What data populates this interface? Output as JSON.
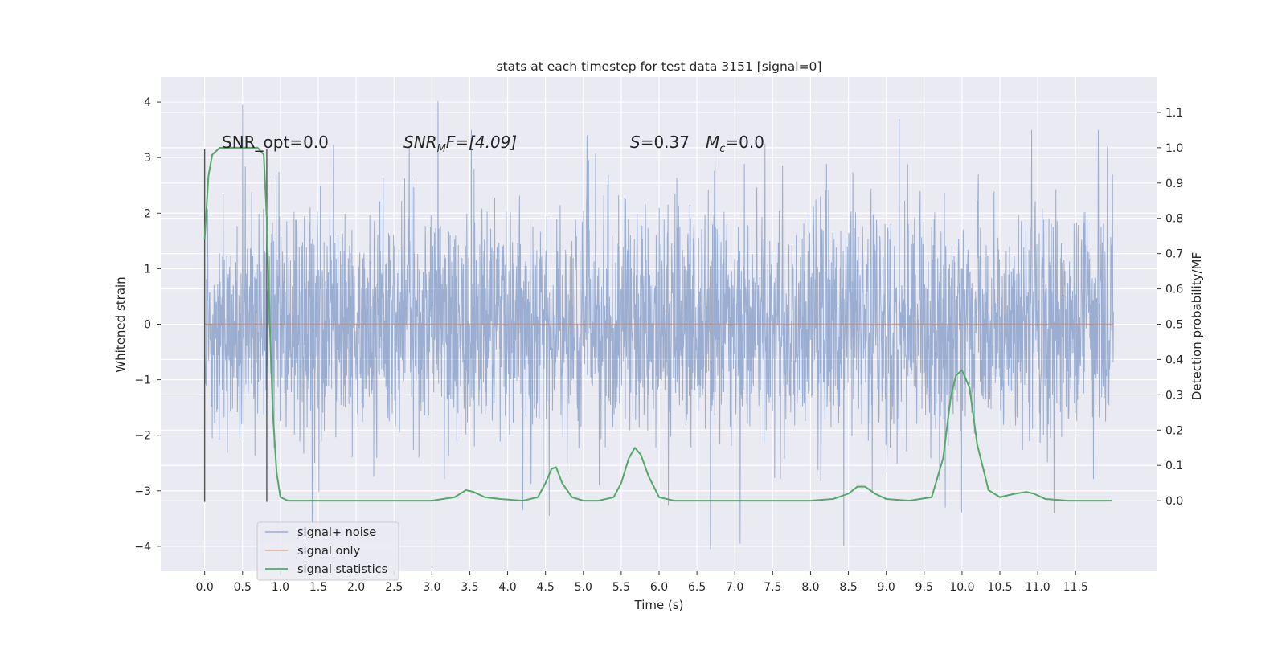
{
  "chart_data": {
    "type": "line",
    "title": "stats at each timestep for test data 3151 [signal=0]",
    "xlabel": "Time (s)",
    "ylabel_left": "Whitened strain",
    "ylabel_right": "Detection probability/MF",
    "xlim": [
      -0.58,
      12.58
    ],
    "ylim_left": [
      -4.45,
      4.45
    ],
    "ylim_right": [
      -0.2,
      1.2
    ],
    "x_ticks": [
      0.0,
      0.5,
      1.0,
      1.5,
      2.0,
      2.5,
      3.0,
      3.5,
      4.0,
      4.5,
      5.0,
      5.5,
      6.0,
      6.5,
      7.0,
      7.5,
      8.0,
      8.5,
      9.0,
      9.5,
      10.0,
      10.5,
      11.0,
      11.5
    ],
    "x_tick_labels": [
      "0.0",
      "0.5",
      "1.0",
      "1.5",
      "2.0",
      "2.5",
      "3.0",
      "3.5",
      "4.0",
      "4.5",
      "5.0",
      "5.5",
      "6.0",
      "6.5",
      "7.0",
      "7.5",
      "8.0",
      "8.5",
      "9.0",
      "9.5",
      "10.0",
      "10.5",
      "11.0",
      "11.5"
    ],
    "y_left_ticks": [
      -4,
      -3,
      -2,
      -1,
      0,
      1,
      2,
      3,
      4
    ],
    "y_left_tick_labels": [
      "−4",
      "−3",
      "−2",
      "−1",
      "0",
      "1",
      "2",
      "3",
      "4"
    ],
    "y_right_ticks": [
      0.0,
      0.1,
      0.2,
      0.3,
      0.4,
      0.5,
      0.6,
      0.7,
      0.8,
      0.9,
      1.0,
      1.1
    ],
    "y_right_tick_labels": [
      "0.0",
      "0.1",
      "0.2",
      "0.3",
      "0.4",
      "0.5",
      "0.6",
      "0.7",
      "0.8",
      "0.9",
      "1.0",
      "1.1"
    ],
    "grid": true,
    "legend_position": "lower-left",
    "annotations": {
      "snr_opt": "SNR_opt=0.0",
      "snr_mf_base": "SNR",
      "snr_mf_sub": "M",
      "snr_mf_rest": "F=[4.09]",
      "s_label": "S",
      "s_value": "=0.37",
      "mc_label": "M",
      "mc_sub": "c",
      "mc_value": "=0.0"
    },
    "series": [
      {
        "name": "signal+ noise",
        "axis": "left",
        "color": "#4c72b0",
        "kind": "noise",
        "x_range": [
          0.0,
          12.0
        ],
        "approx_envelope": [
          -3.4,
          3.5
        ],
        "peaks": [
          {
            "x": 0.5,
            "y": 3.95
          },
          {
            "x": 3.08,
            "y": 4.02
          },
          {
            "x": 2.7,
            "y": 3.2
          },
          {
            "x": 5.05,
            "y": 3.4
          },
          {
            "x": 9.17,
            "y": 3.7
          },
          {
            "x": 10.92,
            "y": 3.5
          },
          {
            "x": 11.92,
            "y": 3.2
          },
          {
            "x": 1.42,
            "y": -3.6
          },
          {
            "x": 6.68,
            "y": -4.05
          },
          {
            "x": 7.07,
            "y": -3.95
          },
          {
            "x": 8.44,
            "y": -4.0
          },
          {
            "x": 9.78,
            "y": -3.3
          },
          {
            "x": 4.55,
            "y": -3.45
          },
          {
            "x": 4.2,
            "y": -3.35
          }
        ]
      },
      {
        "name": "signal only",
        "axis": "left",
        "color": "#dd8452",
        "x": [
          0.0,
          12.0
        ],
        "y": [
          0.0,
          0.0
        ]
      },
      {
        "name": "signal statistics",
        "axis": "right",
        "color": "#55a868",
        "x": [
          0.0,
          0.05,
          0.1,
          0.15,
          0.2,
          0.3,
          0.4,
          0.5,
          0.6,
          0.7,
          0.78,
          0.82,
          0.86,
          0.9,
          0.95,
          1.0,
          1.1,
          1.5,
          2.0,
          2.5,
          3.0,
          3.3,
          3.45,
          3.55,
          3.7,
          3.9,
          4.2,
          4.4,
          4.5,
          4.58,
          4.64,
          4.72,
          4.85,
          5.0,
          5.2,
          5.4,
          5.5,
          5.6,
          5.68,
          5.76,
          5.86,
          6.0,
          6.2,
          6.5,
          7.0,
          7.5,
          8.0,
          8.3,
          8.5,
          8.62,
          8.72,
          8.85,
          9.0,
          9.3,
          9.6,
          9.75,
          9.85,
          9.92,
          10.0,
          10.1,
          10.2,
          10.35,
          10.5,
          10.7,
          10.85,
          10.95,
          11.1,
          11.4,
          11.8,
          11.98
        ],
        "y": [
          0.74,
          0.92,
          0.98,
          0.99,
          1.0,
          1.0,
          1.0,
          1.0,
          1.0,
          1.0,
          0.98,
          0.8,
          0.5,
          0.25,
          0.08,
          0.01,
          0.0,
          0.0,
          0.0,
          0.0,
          0.0,
          0.01,
          0.03,
          0.025,
          0.01,
          0.005,
          0.0,
          0.01,
          0.05,
          0.09,
          0.095,
          0.05,
          0.01,
          0.0,
          0.0,
          0.01,
          0.05,
          0.12,
          0.15,
          0.13,
          0.07,
          0.01,
          0.0,
          0.0,
          0.0,
          0.0,
          0.0,
          0.005,
          0.02,
          0.04,
          0.04,
          0.02,
          0.005,
          0.0,
          0.01,
          0.12,
          0.29,
          0.355,
          0.37,
          0.32,
          0.16,
          0.03,
          0.01,
          0.02,
          0.025,
          0.02,
          0.005,
          0.0,
          0.0,
          0.0
        ]
      }
    ],
    "vertical_lines": [
      {
        "x": 0.0,
        "ymin": -3.2,
        "ymax": 3.15,
        "color": "#555555"
      },
      {
        "x": 0.82,
        "ymin": -3.2,
        "ymax": 3.15,
        "color": "#555555"
      }
    ]
  }
}
